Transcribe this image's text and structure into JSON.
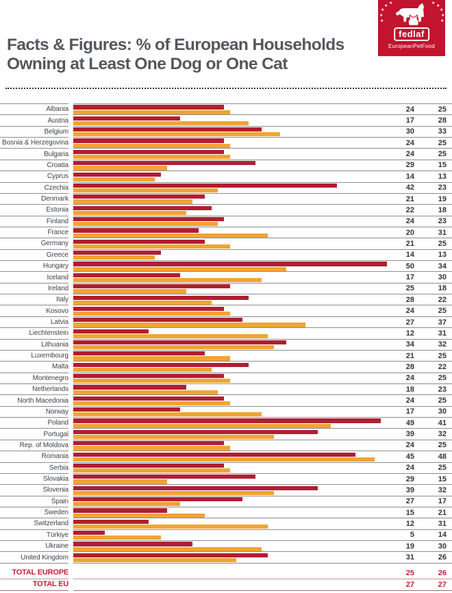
{
  "header": {
    "title_line1": "Facts & Figures: % of European Households",
    "title_line2": "Owning at Least One Dog or One Cat",
    "logo": {
      "brand": "fedlaf",
      "subtitle": "EuropeanPetFood",
      "background_color": "#c2132f",
      "star_glyph": "★"
    }
  },
  "chart_data": {
    "type": "bar",
    "orientation": "horizontal",
    "unit": "% of households",
    "title": "Facts & Figures: % of European Households Owning at Least One Dog or One Cat",
    "xlim": [
      0,
      50
    ],
    "grid": false,
    "legend": "none (values shown as two right-hand numeric columns: dog %, cat %)",
    "colors": {
      "dog": "#b01e32",
      "cat": "#f0a434"
    },
    "categories": [
      "Albania",
      "Austria",
      "Belgium",
      "Bosnia & Herzegovina",
      "Bulgaria",
      "Croatia",
      "Cyprus",
      "Czechia",
      "Denmark",
      "Estonia",
      "Finland",
      "France",
      "Germany",
      "Greece",
      "Hungary",
      "Iceland",
      "Ireland",
      "Italy",
      "Kosovo",
      "Latvia",
      "Liechtenstein",
      "Lithuania",
      "Luxembourg",
      "Malta",
      "Montenegro",
      "Netherlands",
      "North Macedonia",
      "Norway",
      "Poland",
      "Portugal",
      "Rep. of Moldova",
      "Romania",
      "Serbia",
      "Slovakia",
      "Slovenia",
      "Spain",
      "Sweden",
      "Switzerland",
      "Türkiye",
      "Ukraine",
      "United Kingdom"
    ],
    "series": [
      {
        "name": "dog",
        "values": [
          24,
          17,
          30,
          24,
          24,
          29,
          14,
          42,
          21,
          22,
          24,
          20,
          21,
          14,
          50,
          17,
          25,
          28,
          24,
          27,
          12,
          34,
          21,
          28,
          24,
          18,
          24,
          17,
          49,
          39,
          24,
          45,
          24,
          29,
          39,
          27,
          15,
          12,
          5,
          19,
          31
        ]
      },
      {
        "name": "cat",
        "values": [
          25,
          28,
          33,
          25,
          25,
          15,
          13,
          23,
          19,
          18,
          23,
          31,
          25,
          13,
          34,
          30,
          18,
          22,
          25,
          37,
          31,
          32,
          25,
          22,
          25,
          23,
          25,
          30,
          41,
          32,
          25,
          48,
          25,
          15,
          32,
          17,
          21,
          31,
          14,
          30,
          26
        ]
      }
    ],
    "totals": [
      {
        "label": "TOTAL EUROPE",
        "dog": 25,
        "cat": 26
      },
      {
        "label": "TOTAL EU",
        "dog": 27,
        "cat": 27
      }
    ]
  }
}
